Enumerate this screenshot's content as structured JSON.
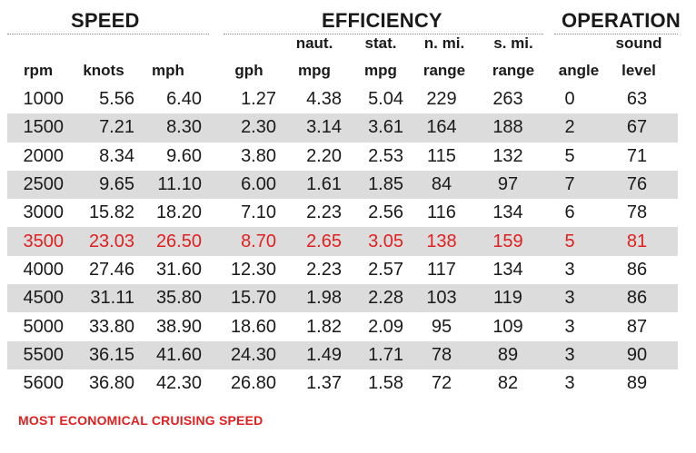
{
  "groups": {
    "speed": "SPEED",
    "efficiency": "EFFICIENCY",
    "operation": "OPERATION"
  },
  "header_line1": {
    "naut": "naut.",
    "stat": "stat.",
    "nmi": "n. mi.",
    "smi": "s. mi.",
    "sound": "sound"
  },
  "columns": [
    "rpm",
    "knots",
    "mph",
    "gph",
    "mpg",
    "mpg",
    "range",
    "range",
    "angle",
    "level"
  ],
  "rows": [
    {
      "rpm": "1000",
      "knots": "5.56",
      "mph": "6.40",
      "gph": "1.27",
      "naut_mpg": "4.38",
      "stat_mpg": "5.04",
      "nmi_range": "229",
      "smi_range": "263",
      "angle": "0",
      "level": "63"
    },
    {
      "rpm": "1500",
      "knots": "7.21",
      "mph": "8.30",
      "gph": "2.30",
      "naut_mpg": "3.14",
      "stat_mpg": "3.61",
      "nmi_range": "164",
      "smi_range": "188",
      "angle": "2",
      "level": "67"
    },
    {
      "rpm": "2000",
      "knots": "8.34",
      "mph": "9.60",
      "gph": "3.80",
      "naut_mpg": "2.20",
      "stat_mpg": "2.53",
      "nmi_range": "115",
      "smi_range": "132",
      "angle": "5",
      "level": "71"
    },
    {
      "rpm": "2500",
      "knots": "9.65",
      "mph": "11.10",
      "gph": "6.00",
      "naut_mpg": "1.61",
      "stat_mpg": "1.85",
      "nmi_range": "84",
      "smi_range": "97",
      "angle": "7",
      "level": "76"
    },
    {
      "rpm": "3000",
      "knots": "15.82",
      "mph": "18.20",
      "gph": "7.10",
      "naut_mpg": "2.23",
      "stat_mpg": "2.56",
      "nmi_range": "116",
      "smi_range": "134",
      "angle": "6",
      "level": "78"
    },
    {
      "rpm": "3500",
      "knots": "23.03",
      "mph": "26.50",
      "gph": "8.70",
      "naut_mpg": "2.65",
      "stat_mpg": "3.05",
      "nmi_range": "138",
      "smi_range": "159",
      "angle": "5",
      "level": "81"
    },
    {
      "rpm": "4000",
      "knots": "27.46",
      "mph": "31.60",
      "gph": "12.30",
      "naut_mpg": "2.23",
      "stat_mpg": "2.57",
      "nmi_range": "117",
      "smi_range": "134",
      "angle": "3",
      "level": "86"
    },
    {
      "rpm": "4500",
      "knots": "31.11",
      "mph": "35.80",
      "gph": "15.70",
      "naut_mpg": "1.98",
      "stat_mpg": "2.28",
      "nmi_range": "103",
      "smi_range": "119",
      "angle": "3",
      "level": "86"
    },
    {
      "rpm": "5000",
      "knots": "33.80",
      "mph": "38.90",
      "gph": "18.60",
      "naut_mpg": "1.82",
      "stat_mpg": "2.09",
      "nmi_range": "95",
      "smi_range": "109",
      "angle": "3",
      "level": "87"
    },
    {
      "rpm": "5500",
      "knots": "36.15",
      "mph": "41.60",
      "gph": "24.30",
      "naut_mpg": "1.49",
      "stat_mpg": "1.71",
      "nmi_range": "78",
      "smi_range": "89",
      "angle": "3",
      "level": "90"
    },
    {
      "rpm": "5600",
      "knots": "36.80",
      "mph": "42.30",
      "gph": "26.80",
      "naut_mpg": "1.37",
      "stat_mpg": "1.58",
      "nmi_range": "72",
      "smi_range": "82",
      "angle": "3",
      "level": "89"
    }
  ],
  "highlight_row_index": 5,
  "colors": {
    "highlight": "#e02020",
    "stripe": "#dcdcdc"
  },
  "footnote": "MOST ECONOMICAL CRUISING SPEED"
}
